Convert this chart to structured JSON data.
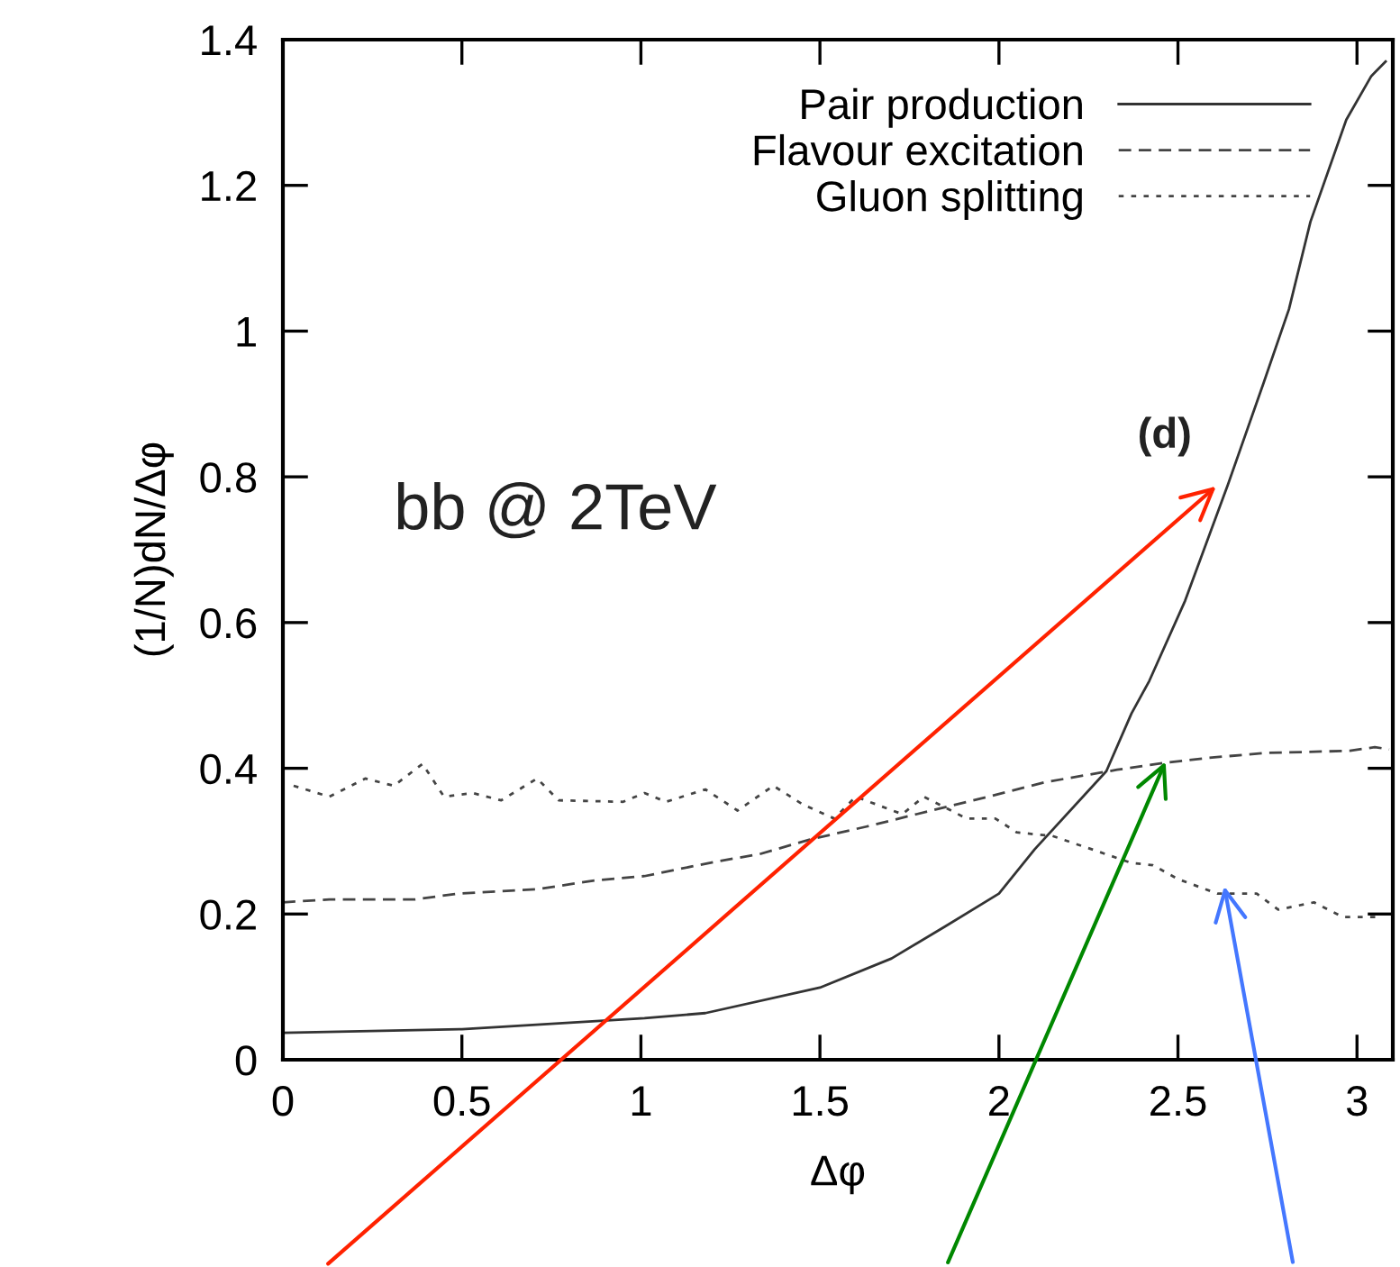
{
  "chart_data": {
    "type": "line",
    "xlabel": "Δφ",
    "ylabel": "(1/N)dN/Δφ",
    "xlim": [
      0,
      3.1
    ],
    "ylim": [
      0,
      1.4
    ],
    "xticks": [
      0,
      0.5,
      1,
      1.5,
      2,
      2.5,
      3
    ],
    "yticks": [
      0,
      0.2,
      0.4,
      0.6,
      0.8,
      1,
      1.2,
      1.4
    ],
    "legend": "top right",
    "grid": false,
    "annotations": [
      "bb @ 2TeV",
      "(d)"
    ],
    "series": [
      {
        "name": "Pair production",
        "color": "#333333",
        "line_style": "solid",
        "x": [
          0,
          0.5,
          1.01,
          1.18,
          1.5,
          1.7,
          1.85,
          2.0,
          2.1,
          2.3,
          2.37,
          2.42,
          2.52,
          2.64,
          2.74,
          2.81,
          2.87,
          2.97,
          3.04,
          3.08
        ],
        "values": [
          0.037,
          0.042,
          0.057,
          0.064,
          0.099,
          0.139,
          0.183,
          0.228,
          0.289,
          0.396,
          0.475,
          0.52,
          0.63,
          0.79,
          0.93,
          1.03,
          1.15,
          1.29,
          1.35,
          1.37
        ]
      },
      {
        "name": "Flavour excitation",
        "color": "#444444",
        "line_style": "dashed",
        "x": [
          0,
          0.13,
          0.37,
          0.49,
          0.71,
          0.87,
          1.01,
          1.21,
          1.33,
          1.47,
          1.63,
          1.77,
          1.97,
          2.13,
          2.33,
          2.47,
          2.58,
          2.74,
          2.98,
          3.05,
          3.09
        ],
        "values": [
          0.216,
          0.22,
          0.22,
          0.228,
          0.234,
          0.246,
          0.252,
          0.272,
          0.282,
          0.302,
          0.32,
          0.337,
          0.361,
          0.381,
          0.398,
          0.408,
          0.414,
          0.421,
          0.424,
          0.429,
          0.426
        ]
      },
      {
        "name": "Gluon splitting",
        "color": "#444444",
        "line_style": "dotted",
        "x": [
          0.03,
          0.13,
          0.23,
          0.31,
          0.39,
          0.45,
          0.53,
          0.61,
          0.71,
          0.77,
          0.95,
          1.01,
          1.07,
          1.18,
          1.27,
          1.37,
          1.45,
          1.54,
          1.6,
          1.73,
          1.79,
          1.91,
          1.99,
          2.05,
          2.15,
          2.27,
          2.37,
          2.43,
          2.5,
          2.61,
          2.72,
          2.78,
          2.88,
          2.96,
          3.06
        ],
        "values": [
          0.376,
          0.361,
          0.386,
          0.376,
          0.406,
          0.361,
          0.366,
          0.356,
          0.386,
          0.356,
          0.354,
          0.366,
          0.354,
          0.371,
          0.342,
          0.376,
          0.351,
          0.331,
          0.361,
          0.337,
          0.361,
          0.331,
          0.331,
          0.312,
          0.307,
          0.287,
          0.27,
          0.267,
          0.248,
          0.228,
          0.228,
          0.206,
          0.216,
          0.196,
          0.196
        ]
      }
    ]
  }
}
